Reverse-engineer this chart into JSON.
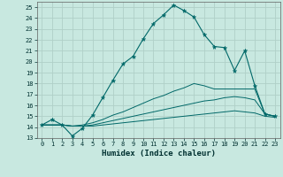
{
  "xlabel": "Humidex (Indice chaleur)",
  "ylabel": "",
  "bg_color": "#c8e8e0",
  "grid_color": "#b0d0c8",
  "line_color": "#006868",
  "xlim": [
    -0.5,
    23.5
  ],
  "ylim": [
    13,
    25.5
  ],
  "xticks": [
    0,
    1,
    2,
    3,
    4,
    5,
    6,
    7,
    8,
    9,
    10,
    11,
    12,
    13,
    14,
    15,
    16,
    17,
    18,
    19,
    20,
    21,
    22,
    23
  ],
  "yticks": [
    13,
    14,
    15,
    16,
    17,
    18,
    19,
    20,
    21,
    22,
    23,
    24,
    25
  ],
  "main_x": [
    0,
    1,
    2,
    3,
    4,
    5,
    6,
    7,
    8,
    9,
    10,
    11,
    12,
    13,
    14,
    15,
    16,
    17,
    18,
    19,
    20,
    21,
    22,
    23
  ],
  "main_y": [
    14.2,
    14.7,
    14.2,
    13.2,
    13.9,
    15.1,
    16.7,
    18.3,
    19.8,
    20.5,
    22.1,
    23.5,
    24.3,
    25.2,
    24.7,
    24.1,
    22.5,
    21.4,
    21.3,
    19.2,
    21.0,
    17.8,
    15.2,
    15.0
  ],
  "line2_x": [
    0,
    1,
    2,
    3,
    4,
    5,
    6,
    7,
    8,
    9,
    10,
    11,
    12,
    13,
    14,
    15,
    16,
    17,
    18,
    19,
    20,
    21,
    22,
    23
  ],
  "line2_y": [
    14.2,
    14.2,
    14.2,
    14.1,
    14.2,
    14.4,
    14.7,
    15.1,
    15.4,
    15.8,
    16.2,
    16.6,
    16.9,
    17.3,
    17.6,
    18.0,
    17.8,
    17.5,
    17.5,
    17.5,
    17.5,
    17.5,
    15.2,
    15.0
  ],
  "line3_x": [
    0,
    1,
    2,
    3,
    4,
    5,
    6,
    7,
    8,
    9,
    10,
    11,
    12,
    13,
    14,
    15,
    16,
    17,
    18,
    19,
    20,
    21,
    22,
    23
  ],
  "line3_y": [
    14.2,
    14.2,
    14.2,
    14.1,
    14.1,
    14.2,
    14.4,
    14.6,
    14.8,
    15.0,
    15.2,
    15.4,
    15.6,
    15.8,
    16.0,
    16.2,
    16.4,
    16.5,
    16.7,
    16.8,
    16.7,
    16.5,
    15.2,
    15.0
  ],
  "line4_x": [
    0,
    1,
    2,
    3,
    4,
    5,
    6,
    7,
    8,
    9,
    10,
    11,
    12,
    13,
    14,
    15,
    16,
    17,
    18,
    19,
    20,
    21,
    22,
    23
  ],
  "line4_y": [
    14.2,
    14.2,
    14.2,
    14.1,
    14.1,
    14.1,
    14.2,
    14.3,
    14.4,
    14.5,
    14.6,
    14.7,
    14.8,
    14.9,
    15.0,
    15.1,
    15.2,
    15.3,
    15.4,
    15.5,
    15.4,
    15.3,
    15.0,
    14.9
  ]
}
